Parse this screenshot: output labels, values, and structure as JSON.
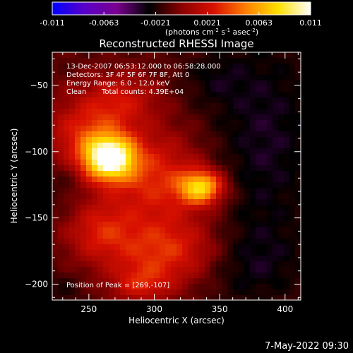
{
  "chart_data": {
    "type": "heatmap",
    "title": "Reconstructed RHESSI Image",
    "xlabel": "Heliocentric X (arcsec)",
    "ylabel": "Heliocentric Y (arcsec)",
    "xlim": [
      222,
      412
    ],
    "ylim": [
      -212,
      -25
    ],
    "x_ticks": [
      250,
      300,
      350,
      400
    ],
    "y_ticks": [
      -50,
      -100,
      -150,
      -200
    ],
    "colorbar": {
      "range": [
        -0.011,
        0.011
      ],
      "ticks": [
        "-0.011",
        "-0.0063",
        "-0.0021",
        "0.0021",
        "0.0063",
        "0.011"
      ],
      "unit_main": "(photons cm",
      "unit_sup1": "-2",
      "unit_mid1": " s",
      "unit_sup2": "-1",
      "unit_mid2": " asec",
      "unit_sup3": "-2",
      "unit_end": ")",
      "colors": [
        "#0000ff",
        "#5a00c8",
        "#7a0090",
        "#000000",
        "#8b0000",
        "#d81000",
        "#ff8000",
        "#ffe000",
        "#ffffff"
      ]
    },
    "annotations": {
      "time": "13-Dec-2007 06:53:12.000 to 06:58:28.000",
      "detectors": "Detectors: 3F 4F 5F 6F 7F 8F, Att 0",
      "energy": "Energy Range: 6.0 - 12.0 keV",
      "method": "Clean",
      "counts": "Total counts: 4.39E+04",
      "peak": "Position of Peak = [269,-107]"
    },
    "sources": [
      {
        "x": 266,
        "y": -105,
        "amp": 0.011,
        "sx": 13,
        "sy": 11
      },
      {
        "x": 336,
        "y": -127,
        "amp": 0.0085,
        "sx": 12,
        "sy": 9
      },
      {
        "x": 250,
        "y": -90,
        "amp": 0.0045,
        "sx": 22,
        "sy": 20
      },
      {
        "x": 300,
        "y": -120,
        "amp": 0.0042,
        "sx": 26,
        "sy": 24
      },
      {
        "x": 310,
        "y": -175,
        "amp": 0.0045,
        "sx": 30,
        "sy": 18
      },
      {
        "x": 258,
        "y": -160,
        "amp": 0.0033,
        "sx": 18,
        "sy": 16
      },
      {
        "x": 275,
        "y": -60,
        "amp": 0.0028,
        "sx": 20,
        "sy": 14
      },
      {
        "x": 290,
        "y": -200,
        "amp": 0.003,
        "sx": 16,
        "sy": 10
      }
    ],
    "negative_regions": [
      {
        "x": 385,
        "y": -90,
        "amp": -0.0022,
        "sx": 30,
        "sy": 60
      },
      {
        "x": 370,
        "y": -185,
        "amp": -0.0018,
        "sx": 30,
        "sy": 22
      },
      {
        "x": 232,
        "y": -120,
        "amp": -0.0012,
        "sx": 12,
        "sy": 16
      },
      {
        "x": 345,
        "y": -45,
        "amp": -0.0012,
        "sx": 18,
        "sy": 14
      },
      {
        "x": 230,
        "y": -205,
        "amp": -0.001,
        "sx": 12,
        "sy": 10
      }
    ]
  },
  "footer": {
    "date": "7-May-2022 09:30"
  }
}
